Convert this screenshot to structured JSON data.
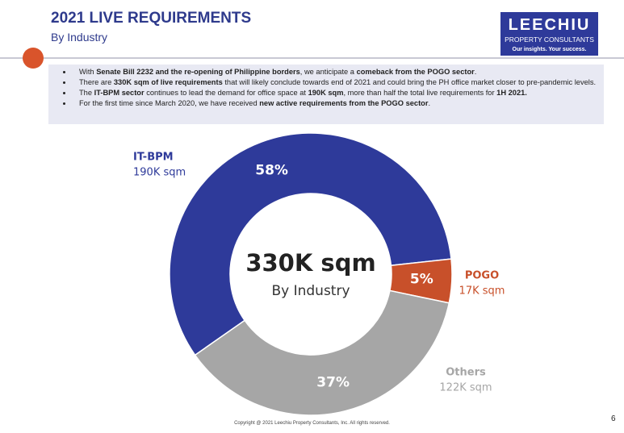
{
  "header": {
    "title": "2021 LIVE REQUIREMENTS",
    "subtitle": "By Industry"
  },
  "logo": {
    "name": "LEECHIU",
    "tagline": "PROPERTY CONSULTANTS",
    "slogan": "Our insights. Your success."
  },
  "bullets": [
    [
      "With ",
      "Senate Bill 2232 and the re-opening of Philippine borders",
      ", we anticipate a ",
      "comeback from the POGO sector",
      "."
    ],
    [
      "There are ",
      "330K sqm of live requirements",
      " that will likely conclude towards end of 2021 and could bring the PH office market closer to pre-pandemic levels."
    ],
    [
      "The ",
      "IT-BPM sector",
      " continues to lead the demand for office space at ",
      "190K sqm",
      ", more than half the total live requirements for ",
      "1H 2021."
    ],
    [
      "For the first time since March 2020, we have received ",
      "new active requirements from the POGO sector",
      "."
    ]
  ],
  "chart_data": {
    "type": "donut",
    "center_title": "330K sqm",
    "center_subtitle": "By Industry",
    "categories": [
      "IT-BPM",
      "POGO",
      "Others"
    ],
    "values": [
      58,
      5,
      37
    ],
    "value_labels": [
      "58%",
      "5%",
      "37%"
    ],
    "amount_labels": [
      "190K sqm",
      "17K sqm",
      "122K sqm"
    ],
    "colors": [
      "#2e3a9a",
      "#c8502a",
      "#a6a6a6"
    ]
  },
  "footer": {
    "copyright": "Copyright @ 2021 Leechiu Property Consultants, Inc. All rights reserved.",
    "page": "6"
  }
}
